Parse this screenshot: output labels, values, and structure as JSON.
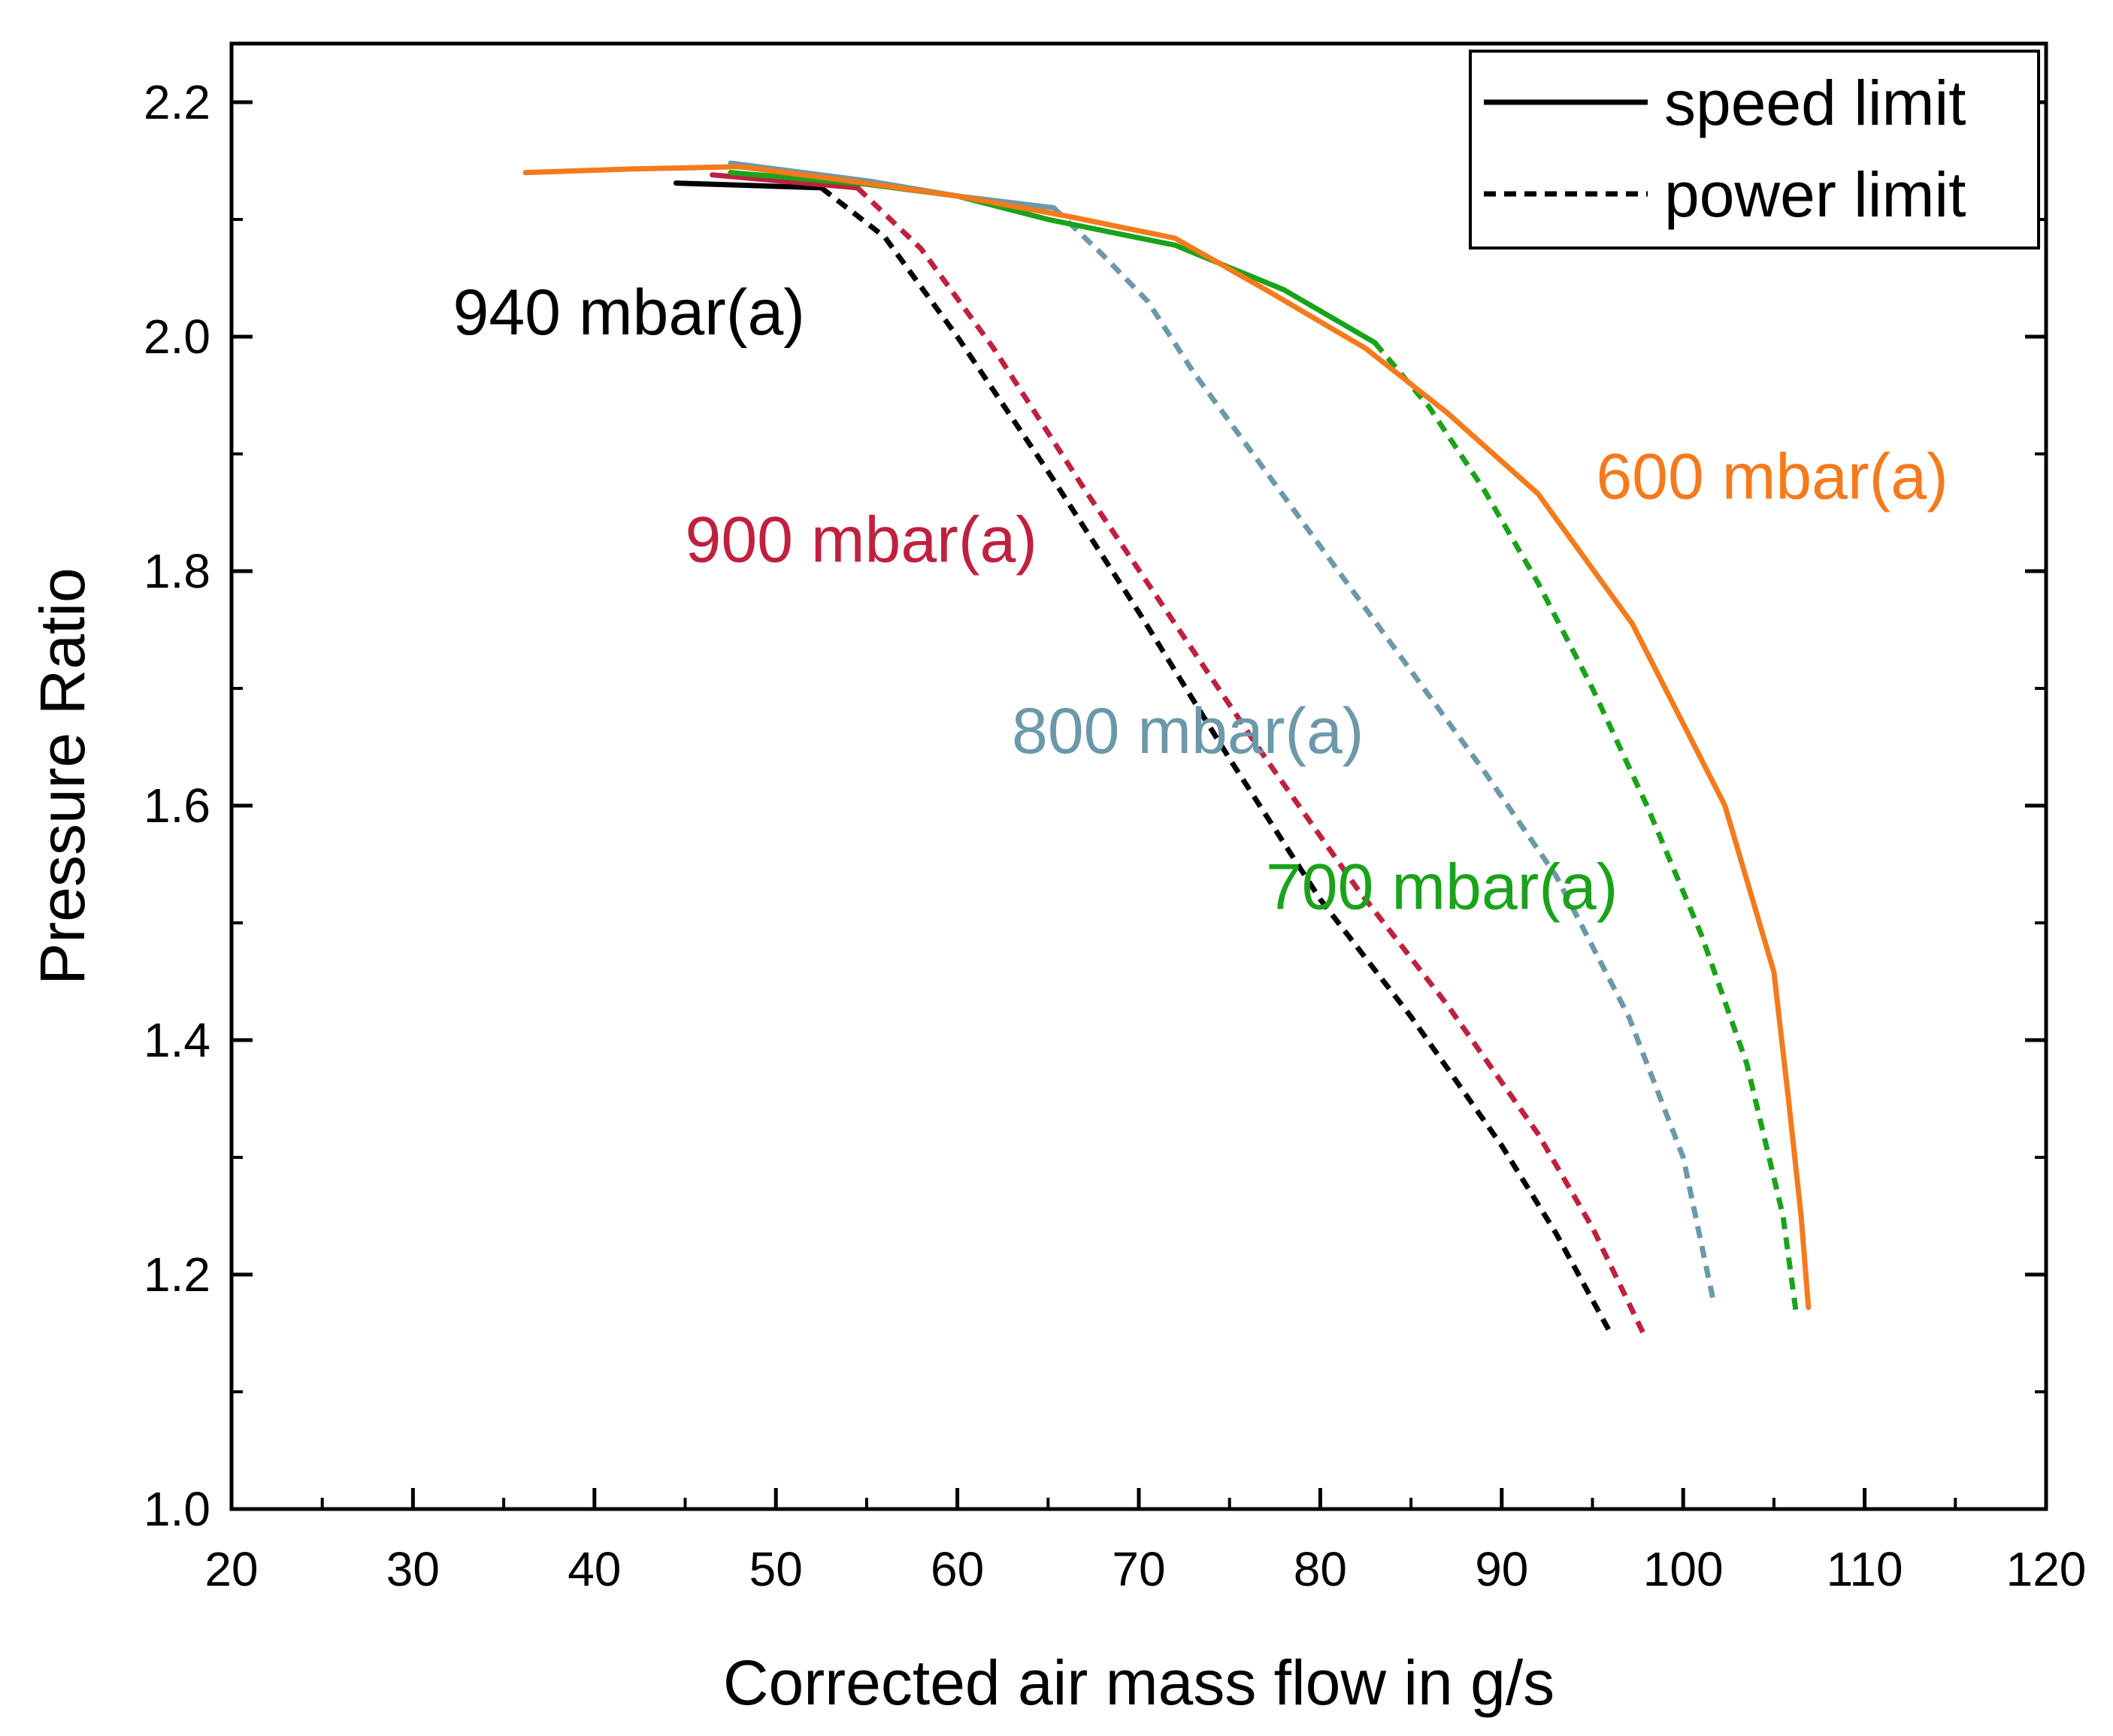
{
  "chart_data": {
    "type": "line",
    "title": "",
    "xlabel": "Corrected air mass flow in g/s",
    "ylabel": "Pressure Ratio",
    "xlim": [
      20,
      120
    ],
    "ylim": [
      1.0,
      2.25
    ],
    "x_ticks": [
      20,
      30,
      40,
      50,
      60,
      70,
      80,
      90,
      100,
      110,
      120
    ],
    "x_tick_labels": [
      "20",
      "30",
      "40",
      "50",
      "60",
      "70",
      "80",
      "90",
      "100",
      "110",
      "120"
    ],
    "y_ticks": [
      1.0,
      1.2,
      1.4,
      1.6,
      1.8,
      2.0,
      2.2
    ],
    "y_tick_labels": [
      "1.0",
      "1.2",
      "1.4",
      "1.6",
      "1.8",
      "2.0",
      "2.2"
    ],
    "grid": false,
    "legend": {
      "position": "top-right",
      "entries": [
        {
          "label": "speed limit",
          "style": "solid"
        },
        {
          "label": "power limit",
          "style": "dashed"
        }
      ]
    },
    "series": [
      {
        "name": "940 mbar(a)",
        "color": "#000000",
        "label": "940 mbar(a)",
        "label_anchor": [
          32.2,
          2.002
        ],
        "speed_limit": {
          "x": [
            44.5,
            52.5
          ],
          "y": [
            2.131,
            2.127
          ]
        },
        "power_limit": {
          "x": [
            52.5,
            56,
            60,
            65,
            70,
            75,
            80,
            85,
            90,
            93,
            96
          ],
          "y": [
            2.127,
            2.085,
            2.0,
            1.885,
            1.765,
            1.64,
            1.52,
            1.42,
            1.31,
            1.235,
            1.15
          ]
        }
      },
      {
        "name": "900 mbar(a)",
        "color": "#c0203f",
        "label": "900 mbar(a)",
        "label_anchor": [
          45.0,
          1.808
        ],
        "speed_limit": {
          "x": [
            46.5,
            54.5
          ],
          "y": [
            2.138,
            2.127
          ]
        },
        "power_limit": {
          "x": [
            54.5,
            58,
            62,
            67,
            72,
            77,
            82,
            87,
            92,
            95,
            97.8
          ],
          "y": [
            2.127,
            2.075,
            1.99,
            1.87,
            1.755,
            1.64,
            1.53,
            1.43,
            1.32,
            1.24,
            1.15
          ]
        }
      },
      {
        "name": "800 mbar(a)",
        "color": "#6b99aa",
        "label": "800 mbar(a)",
        "label_anchor": [
          63.0,
          1.645
        ],
        "speed_limit": {
          "x": [
            47.5,
            55,
            60,
            65.3
          ],
          "y": [
            2.148,
            2.133,
            2.12,
            2.11
          ]
        },
        "power_limit": {
          "x": [
            65.3,
            68,
            70.5,
            73,
            77,
            81,
            85,
            89,
            93,
            97,
            100,
            101.7
          ],
          "y": [
            2.11,
            2.07,
            2.03,
            1.97,
            1.885,
            1.8,
            1.715,
            1.63,
            1.54,
            1.42,
            1.3,
            1.175
          ]
        }
      },
      {
        "name": "700 mbar(a)",
        "color": "#1aa31a",
        "label": "700 mbar(a)",
        "label_anchor": [
          77.0,
          1.512
        ],
        "speed_limit": {
          "x": [
            47.5,
            55,
            60,
            65,
            72,
            78,
            83
          ],
          "y": [
            2.14,
            2.13,
            2.12,
            2.1,
            2.078,
            2.04,
            1.995
          ]
        },
        "power_limit": {
          "x": [
            83,
            86,
            89,
            92,
            95,
            98,
            101,
            103.5,
            105.5,
            106.2
          ],
          "y": [
            1.995,
            1.94,
            1.87,
            1.79,
            1.7,
            1.6,
            1.49,
            1.38,
            1.25,
            1.17
          ]
        }
      },
      {
        "name": "600 mbar(a)",
        "color": "#f57a1c",
        "label": "600 mbar(a)",
        "label_anchor": [
          95.2,
          1.862
        ],
        "speed_limit": {
          "x": [
            36.2,
            42,
            48,
            54,
            60,
            66,
            72,
            77,
            82.5,
            87,
            92,
            97.2,
            102.3,
            105,
            105.8,
            106.5,
            106.9
          ],
          "y": [
            2.14,
            2.143,
            2.145,
            2.133,
            2.12,
            2.103,
            2.084,
            2.04,
            1.99,
            1.935,
            1.866,
            1.755,
            1.6,
            1.458,
            1.35,
            1.25,
            1.172
          ]
        },
        "power_limit": null
      }
    ]
  }
}
